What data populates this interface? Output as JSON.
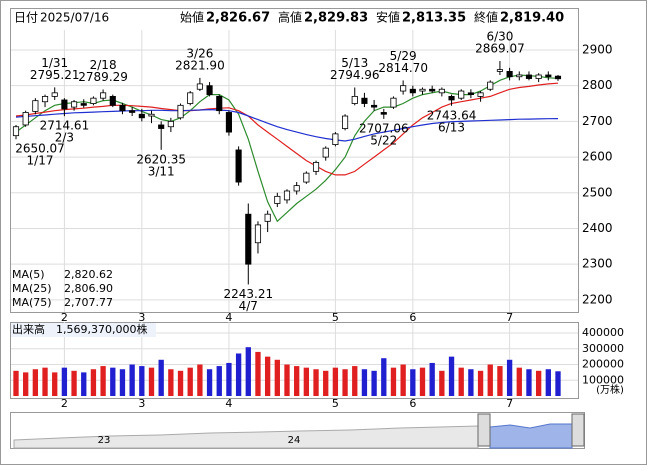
{
  "chart_data": [
    {
      "type": "candlestick",
      "header": {
        "date_label": "日付",
        "date": "2025/07/16",
        "items": [
          {
            "label": "始値",
            "value": "2,826.67",
            "color": "#000000"
          },
          {
            "label": "高値",
            "value": "2,829.83",
            "color": "#e00000"
          },
          {
            "label": "安値",
            "value": "2,813.35",
            "color": "#008000"
          },
          {
            "label": "終値",
            "value": "2,819.40",
            "color": "#000000"
          }
        ]
      },
      "x": [
        "1/17",
        "1/21",
        "1/24",
        "1/28",
        "1/31",
        "2/3",
        "2/6",
        "2/10",
        "2/13",
        "2/18",
        "2/20",
        "2/25",
        "2/27",
        "3/3",
        "3/6",
        "3/11",
        "3/13",
        "3/18",
        "3/21",
        "3/26",
        "3/28",
        "3/31",
        "4/2",
        "4/4",
        "4/7",
        "4/9",
        "4/11",
        "4/15",
        "4/17",
        "4/21",
        "4/23",
        "4/25",
        "4/30",
        "5/2",
        "5/8",
        "5/13",
        "5/15",
        "5/19",
        "5/22",
        "5/26",
        "5/29",
        "6/2",
        "6/4",
        "6/6",
        "6/10",
        "6/13",
        "6/17",
        "6/19",
        "6/23",
        "6/25",
        "6/30",
        "7/2",
        "7/4",
        "7/8",
        "7/10",
        "7/14",
        "7/16"
      ],
      "ohlc": [
        [
          2660,
          2690,
          2650.07,
          2685
        ],
        [
          2690,
          2730,
          2685,
          2725
        ],
        [
          2728,
          2765,
          2720,
          2758
        ],
        [
          2755,
          2775,
          2740,
          2770
        ],
        [
          2770,
          2795.21,
          2760,
          2780
        ],
        [
          2760,
          2765,
          2714.61,
          2735
        ],
        [
          2740,
          2760,
          2730,
          2755
        ],
        [
          2750,
          2762,
          2738,
          2745
        ],
        [
          2750,
          2770,
          2745,
          2765
        ],
        [
          2765,
          2789.29,
          2758,
          2780
        ],
        [
          2770,
          2775,
          2740,
          2745
        ],
        [
          2745,
          2752,
          2720,
          2730
        ],
        [
          2730,
          2740,
          2715,
          2725
        ],
        [
          2720,
          2735,
          2700,
          2710
        ],
        [
          2715,
          2730,
          2695,
          2720
        ],
        [
          2690,
          2700,
          2620.35,
          2680
        ],
        [
          2685,
          2710,
          2670,
          2700
        ],
        [
          2710,
          2750,
          2705,
          2745
        ],
        [
          2750,
          2785,
          2745,
          2780
        ],
        [
          2790,
          2821.9,
          2785,
          2805
        ],
        [
          2800,
          2810,
          2770,
          2775
        ],
        [
          2770,
          2775,
          2720,
          2730
        ],
        [
          2725,
          2730,
          2660,
          2670
        ],
        [
          2620,
          2630,
          2520,
          2530
        ],
        [
          2440,
          2470,
          2243.21,
          2300
        ],
        [
          2360,
          2420,
          2330,
          2410
        ],
        [
          2420,
          2450,
          2390,
          2440
        ],
        [
          2470,
          2500,
          2460,
          2490
        ],
        [
          2480,
          2510,
          2470,
          2505
        ],
        [
          2505,
          2530,
          2495,
          2520
        ],
        [
          2530,
          2560,
          2525,
          2555
        ],
        [
          2560,
          2590,
          2550,
          2585
        ],
        [
          2600,
          2630,
          2590,
          2625
        ],
        [
          2635,
          2670,
          2630,
          2665
        ],
        [
          2680,
          2720,
          2675,
          2715
        ],
        [
          2750,
          2794.96,
          2745,
          2770
        ],
        [
          2765,
          2780,
          2740,
          2750
        ],
        [
          2745,
          2760,
          2730,
          2740
        ],
        [
          2725,
          2735,
          2707.06,
          2720
        ],
        [
          2740,
          2770,
          2735,
          2765
        ],
        [
          2785,
          2814.7,
          2775,
          2800
        ],
        [
          2790,
          2800,
          2770,
          2780
        ],
        [
          2785,
          2795,
          2775,
          2790
        ],
        [
          2790,
          2800,
          2780,
          2785
        ],
        [
          2780,
          2795,
          2770,
          2790
        ],
        [
          2770,
          2775,
          2743.64,
          2760
        ],
        [
          2765,
          2790,
          2760,
          2785
        ],
        [
          2780,
          2790,
          2765,
          2775
        ],
        [
          2770,
          2785,
          2755,
          2780
        ],
        [
          2790,
          2815,
          2785,
          2810
        ],
        [
          2840,
          2869.07,
          2830,
          2845
        ],
        [
          2840,
          2850,
          2815,
          2825
        ],
        [
          2825,
          2840,
          2815,
          2830
        ],
        [
          2830,
          2840,
          2815,
          2820
        ],
        [
          2820,
          2835,
          2810,
          2830
        ],
        [
          2830,
          2840,
          2815,
          2825
        ],
        [
          2826.67,
          2829.83,
          2813.35,
          2819.4
        ]
      ],
      "up_color": "#ffffff",
      "down_color": "#000000",
      "series": [
        {
          "name": "MA(5)",
          "color": "#2e8b2e",
          "last_value_label": "2,820.62",
          "values": [
            2670,
            2690,
            2710,
            2730,
            2745,
            2750,
            2752,
            2755,
            2750,
            2758,
            2760,
            2750,
            2740,
            2728,
            2718,
            2705,
            2700,
            2710,
            2730,
            2755,
            2775,
            2775,
            2760,
            2720,
            2650,
            2560,
            2475,
            2420,
            2445,
            2470,
            2490,
            2510,
            2535,
            2565,
            2600,
            2660,
            2700,
            2730,
            2740,
            2740,
            2750,
            2765,
            2775,
            2780,
            2785,
            2778,
            2775,
            2775,
            2785,
            2800,
            2815,
            2825,
            2830,
            2828,
            2826,
            2822,
            2820.62
          ]
        },
        {
          "name": "MA(25)",
          "color": "#e02020",
          "last_value_label": "2,806.90",
          "values": [
            2715,
            2718,
            2722,
            2726,
            2730,
            2733,
            2735,
            2737,
            2740,
            2742,
            2745,
            2745,
            2744,
            2742,
            2740,
            2736,
            2733,
            2730,
            2730,
            2732,
            2735,
            2737,
            2738,
            2730,
            2715,
            2690,
            2670,
            2650,
            2630,
            2610,
            2590,
            2575,
            2560,
            2550,
            2550,
            2560,
            2580,
            2600,
            2620,
            2640,
            2665,
            2690,
            2710,
            2725,
            2740,
            2750,
            2755,
            2760,
            2765,
            2770,
            2780,
            2790,
            2795,
            2798,
            2802,
            2805,
            2806.9
          ]
        },
        {
          "name": "MA(75)",
          "color": "#2030d0",
          "last_value_label": "2,707.77",
          "values": [
            2712,
            2714,
            2716,
            2718,
            2720,
            2722,
            2724,
            2725,
            2726,
            2727,
            2728,
            2729,
            2730,
            2730,
            2731,
            2731,
            2730,
            2730,
            2731,
            2732,
            2733,
            2732,
            2730,
            2725,
            2715,
            2705,
            2695,
            2685,
            2677,
            2670,
            2663,
            2657,
            2652,
            2648,
            2645,
            2650,
            2658,
            2665,
            2670,
            2675,
            2680,
            2685,
            2690,
            2694,
            2697,
            2699,
            2700,
            2701,
            2702,
            2703,
            2704,
            2705,
            2706,
            2706.5,
            2707,
            2707.5,
            2707.77
          ]
        }
      ],
      "annotations": [
        {
          "date": "1/17",
          "price": 2650.07
        },
        {
          "date": "1/31",
          "price": 2795.21
        },
        {
          "date": "2/3",
          "price": 2714.61
        },
        {
          "date": "2/18",
          "price": 2789.29
        },
        {
          "date": "3/11",
          "price": 2620.35
        },
        {
          "date": "3/26",
          "price": {
            "value": 2821.9,
            "label": "2821.90"
          }
        },
        {
          "date": "4/7",
          "price": 2243.21
        },
        {
          "date": "5/13",
          "price": 2794.96
        },
        {
          "date": "5/22",
          "price": 2707.06
        },
        {
          "date": "5/29",
          "price": {
            "value": 2814.7,
            "label": "2814.70"
          }
        },
        {
          "date": "6/13",
          "price": 2743.64
        },
        {
          "date": "6/30",
          "price": 2869.07
        }
      ],
      "ylim": [
        2166,
        2956
      ],
      "yticks": [
        2200,
        2300,
        2400,
        2500,
        2600,
        2700,
        2800,
        2900
      ],
      "xticks": [
        {
          "value": "2/3",
          "label": "2"
        },
        {
          "value": "3/3",
          "label": "3"
        },
        {
          "value": "4/2",
          "label": "4"
        },
        {
          "value": "5/2",
          "label": "5"
        },
        {
          "value": "6/2",
          "label": "6"
        },
        {
          "value": "7/2",
          "label": "7"
        }
      ],
      "grid": true
    },
    {
      "type": "bar",
      "title": "出来高",
      "latest": "1,569,370,000株",
      "unit": "(万株)",
      "x": [
        "1/17",
        "1/21",
        "1/24",
        "1/28",
        "1/31",
        "2/3",
        "2/6",
        "2/10",
        "2/13",
        "2/18",
        "2/20",
        "2/25",
        "2/27",
        "3/3",
        "3/6",
        "3/11",
        "3/13",
        "3/18",
        "3/21",
        "3/26",
        "3/28",
        "3/31",
        "4/2",
        "4/4",
        "4/7",
        "4/9",
        "4/11",
        "4/15",
        "4/17",
        "4/21",
        "4/23",
        "4/25",
        "4/30",
        "5/2",
        "5/8",
        "5/13",
        "5/15",
        "5/19",
        "5/22",
        "5/26",
        "5/29",
        "6/2",
        "6/4",
        "6/6",
        "6/10",
        "6/13",
        "6/17",
        "6/19",
        "6/23",
        "6/25",
        "6/30",
        "7/2",
        "7/4",
        "7/8",
        "7/10",
        "7/14",
        "7/16"
      ],
      "values": [
        160000,
        150000,
        170000,
        180000,
        150000,
        180000,
        160000,
        150000,
        170000,
        190000,
        180000,
        170000,
        200000,
        190000,
        180000,
        230000,
        170000,
        160000,
        180000,
        200000,
        170000,
        190000,
        210000,
        270000,
        310000,
        280000,
        250000,
        230000,
        200000,
        190000,
        180000,
        170000,
        160000,
        180000,
        170000,
        190000,
        170000,
        160000,
        240000,
        180000,
        200000,
        170000,
        180000,
        210000,
        160000,
        250000,
        180000,
        170000,
        160000,
        200000,
        190000,
        230000,
        180000,
        170000,
        160000,
        170000,
        156937
      ],
      "up_color": "#e02020",
      "down_color": "#2020d0",
      "ylim": [
        0,
        470000
      ],
      "yticks": [
        100000,
        200000,
        300000,
        400000
      ],
      "xticks": [
        {
          "value": "2/3",
          "label": "2"
        },
        {
          "value": "3/3",
          "label": "3"
        },
        {
          "value": "4/2",
          "label": "4"
        },
        {
          "value": "5/2",
          "label": "5"
        },
        {
          "value": "6/2",
          "label": "6"
        },
        {
          "value": "7/2",
          "label": "7"
        }
      ],
      "grid": true
    }
  ],
  "navigator": {
    "labels": [
      "23",
      "24"
    ]
  }
}
